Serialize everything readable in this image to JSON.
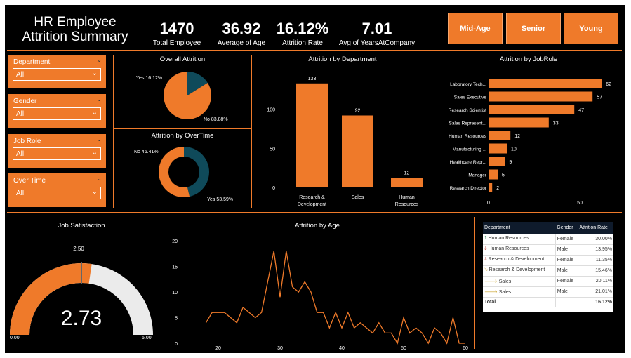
{
  "header": {
    "title": "HR Employee Attrition Summary"
  },
  "kpis": [
    {
      "value": "1470",
      "label": "Total Employee"
    },
    {
      "value": "36.92",
      "label": "Average of Age"
    },
    {
      "value": "16.12%",
      "label": "Attrition Rate"
    },
    {
      "value": "7.01",
      "label": "Avg of YearsAtCompany"
    }
  ],
  "segments": [
    "Mid-Age",
    "Senior",
    "Young"
  ],
  "slicers": [
    {
      "label": "Department",
      "value": "All"
    },
    {
      "label": "Gender",
      "value": "All"
    },
    {
      "label": "Job Role",
      "value": "All"
    },
    {
      "label": "Over Time",
      "value": "All"
    }
  ],
  "colors": {
    "accent": "#EF7A2A",
    "dark_teal": "#0F4A5A",
    "gauge_bg": "#EBEBEB",
    "table_header": "#0F1B2C"
  },
  "overall_attrition": {
    "title": "Overall Attrition",
    "label_yes": "Yes 16.12%",
    "label_no": "No 83.88%"
  },
  "overtime_attrition": {
    "title": "Attrition by OverTime",
    "label_no": "No 46.41%",
    "label_yes": "Yes 53.59%"
  },
  "dept_chart_title": "Attrition by Department",
  "role_chart_title": "Attrition by JobRole",
  "job_satisfaction": {
    "title": "Job Satisfaction",
    "value": "2.73",
    "min": "0.00",
    "max": "5.00",
    "target": "2.50"
  },
  "age_chart_title": "Attrition by Age",
  "table": {
    "headers": [
      "Department",
      "Gender",
      "Attrition Rate"
    ],
    "rows": [
      {
        "trend": "up",
        "dept": "Human Resources",
        "gender": "Female",
        "rate": "30.00%"
      },
      {
        "trend": "down",
        "dept": "Human Resources",
        "gender": "Male",
        "rate": "13.95%"
      },
      {
        "trend": "down",
        "dept": "Research & Development",
        "gender": "Female",
        "rate": "11.35%"
      },
      {
        "trend": "diag",
        "dept": "Research & Development",
        "gender": "Male",
        "rate": "15.46%"
      },
      {
        "trend": "right",
        "dept": "Sales",
        "gender": "Female",
        "rate": "20.11%"
      },
      {
        "trend": "right",
        "dept": "Sales",
        "gender": "Male",
        "rate": "21.01%"
      }
    ],
    "total_label": "Total",
    "total_rate": "16.12%"
  },
  "chart_data": [
    {
      "type": "pie",
      "title": "Overall Attrition",
      "slices": [
        {
          "label": "Yes",
          "value": 16.12
        },
        {
          "label": "No",
          "value": 83.88
        }
      ]
    },
    {
      "type": "pie",
      "title": "Attrition by OverTime",
      "donut": true,
      "slices": [
        {
          "label": "No",
          "value": 46.41
        },
        {
          "label": "Yes",
          "value": 53.59
        }
      ]
    },
    {
      "type": "bar",
      "title": "Attrition by Department",
      "categories": [
        "Research & Development",
        "Sales",
        "Human Resources"
      ],
      "values": [
        133,
        92,
        12
      ],
      "ylim": [
        0,
        140
      ],
      "yticks": [
        0,
        50,
        100
      ]
    },
    {
      "type": "bar",
      "orientation": "horizontal",
      "title": "Attrition by JobRole",
      "categories": [
        "Laboratory Tech...",
        "Sales Executive",
        "Research Scientist",
        "Sales Represent...",
        "Human Resources",
        "Manufacturing ...",
        "Healthcare Repr...",
        "Manager",
        "Research Director"
      ],
      "values": [
        62,
        57,
        47,
        33,
        12,
        10,
        9,
        5,
        2
      ],
      "xlim": [
        0,
        70
      ],
      "xticks": [
        0,
        50
      ]
    },
    {
      "type": "line",
      "title": "Attrition by Age",
      "x": [
        18,
        19,
        20,
        21,
        22,
        23,
        24,
        25,
        26,
        27,
        28,
        29,
        30,
        31,
        32,
        33,
        34,
        35,
        36,
        37,
        38,
        39,
        40,
        41,
        42,
        43,
        44,
        45,
        46,
        47,
        48,
        49,
        50,
        51,
        52,
        53,
        54,
        55,
        56,
        57,
        58,
        59,
        60
      ],
      "y": [
        4,
        6,
        6,
        6,
        5,
        4,
        7,
        6,
        5,
        6,
        12,
        18,
        9,
        18,
        11,
        10,
        12,
        10,
        6,
        6,
        3,
        6,
        3,
        6,
        3,
        4,
        3,
        2,
        4,
        2,
        2,
        0,
        5,
        2,
        3,
        2,
        0,
        3,
        2,
        0,
        5,
        0,
        0
      ],
      "xticks": [
        20,
        30,
        40,
        50,
        60
      ],
      "ylim": [
        0,
        20
      ],
      "yticks": [
        0,
        5,
        10,
        15,
        20
      ]
    }
  ]
}
